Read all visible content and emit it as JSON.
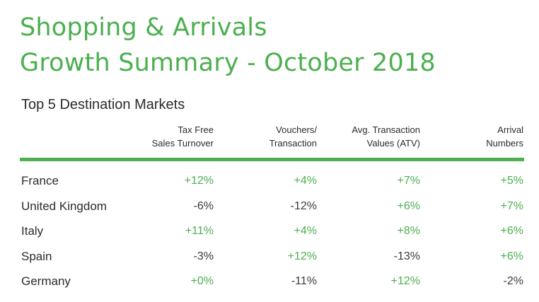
{
  "chart_data": {
    "type": "table",
    "title_lines": [
      "Shopping & Arrivals",
      "Growth Summary - October 2018"
    ],
    "subtitle": "Top 5 Destination Markets",
    "columns": [
      "Tax Free\nSales Turnover",
      "Vouchers/\nTransaction",
      "Avg. Transaction\nValues (ATV)",
      "Arrival\nNumbers"
    ],
    "rows": [
      {
        "label": "France",
        "values": [
          "+12%",
          "+4%",
          "+7%",
          "+5%"
        ]
      },
      {
        "label": "United Kingdom",
        "values": [
          "-6%",
          "-12%",
          "+6%",
          "+7%"
        ]
      },
      {
        "label": "Italy",
        "values": [
          "+11%",
          "+4%",
          "+8%",
          "+6%"
        ]
      },
      {
        "label": "Spain",
        "values": [
          "-3%",
          "+12%",
          "-13%",
          "+6%"
        ]
      },
      {
        "label": "Germany",
        "values": [
          "+0%",
          "-11%",
          "+12%",
          "-2%"
        ]
      }
    ],
    "colors": {
      "accent": "#4caf50",
      "text": "#2b2b2b"
    }
  }
}
